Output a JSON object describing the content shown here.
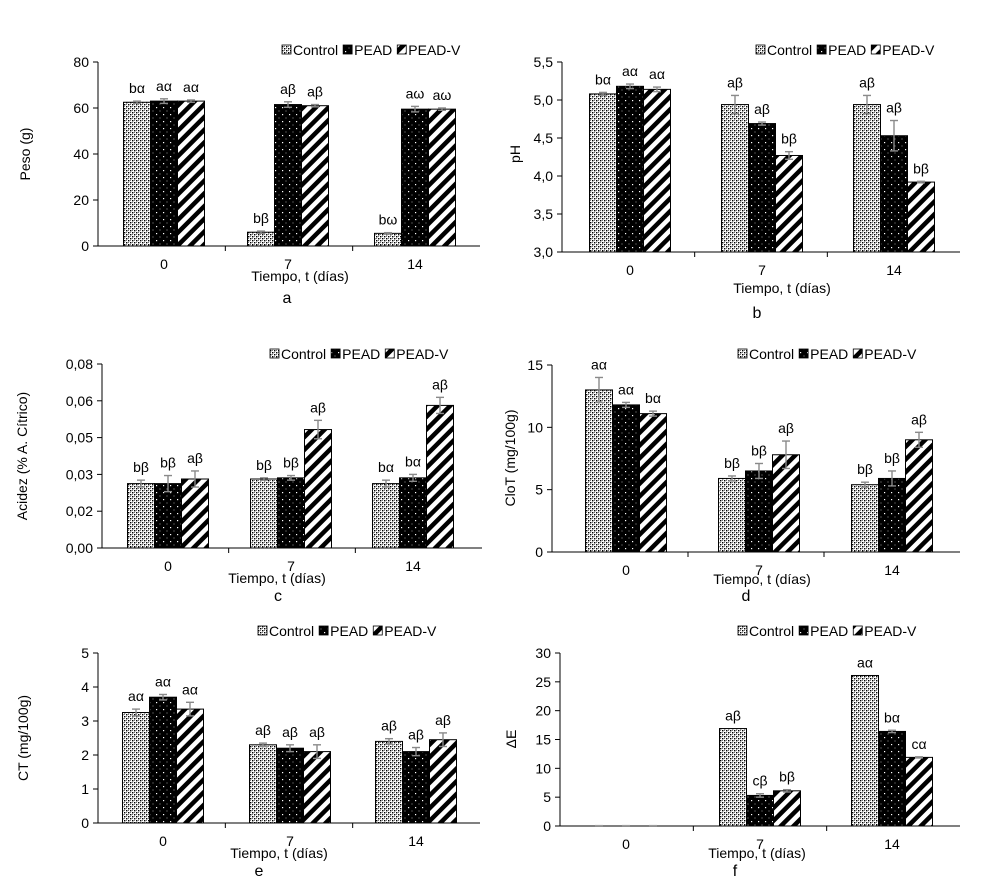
{
  "groups": [
    "Control",
    "PEAD",
    "PEAD-V"
  ],
  "styles": {
    "Control": "dots",
    "PEAD": "solid",
    "PEAD-V": "stripes"
  },
  "colors": {
    "bar_edge": "#000000",
    "error_bar": "#8a8a8a",
    "background": "#ffffff"
  },
  "chart_data": [
    {
      "id": "a",
      "type": "bar",
      "panel_label": "a",
      "ylabel": "Peso (g)",
      "xlabel": "Tiempo, t (días)",
      "ylim": [
        0,
        80
      ],
      "yticks": [
        "0",
        "20",
        "40",
        "60",
        "80"
      ],
      "categories": [
        "0",
        "7",
        "14"
      ],
      "series": [
        {
          "name": "Control",
          "values": [
            62.5,
            6,
            5.5
          ],
          "errors": [
            0.5,
            0.5,
            0.3
          ],
          "labels": [
            "bα",
            "bβ",
            "bω"
          ]
        },
        {
          "name": "PEAD",
          "values": [
            63,
            61.5,
            59.5
          ],
          "errors": [
            1,
            1.2,
            1.2
          ],
          "labels": [
            "aα",
            "aβ",
            "aω"
          ]
        },
        {
          "name": "PEAD-V",
          "values": [
            63,
            61,
            59.5
          ],
          "errors": [
            0.5,
            0.5,
            0.5
          ],
          "labels": [
            "aα",
            "aβ",
            "aω"
          ]
        }
      ]
    },
    {
      "id": "b",
      "type": "bar",
      "panel_label": "b",
      "ylabel": "pH",
      "xlabel": "Tiempo, t (días)",
      "ylim": [
        3.0,
        5.5
      ],
      "yticks": [
        "3,0",
        "3,5",
        "4,0",
        "4,5",
        "5,0",
        "5,5"
      ],
      "categories": [
        "0",
        "7",
        "14"
      ],
      "series": [
        {
          "name": "Control",
          "values": [
            5.08,
            4.94,
            4.94
          ],
          "errors": [
            0.02,
            0.12,
            0.12
          ],
          "labels": [
            "bα",
            "aβ",
            "aβ"
          ]
        },
        {
          "name": "PEAD",
          "values": [
            5.18,
            4.69,
            4.53
          ],
          "errors": [
            0.03,
            0.02,
            0.2
          ],
          "labels": [
            "aα",
            "aβ",
            "aβ"
          ]
        },
        {
          "name": "PEAD-V",
          "values": [
            5.14,
            4.27,
            3.92
          ],
          "errors": [
            0.03,
            0.05,
            0.01
          ],
          "labels": [
            "aα",
            "bβ",
            "bβ"
          ]
        }
      ]
    },
    {
      "id": "c",
      "type": "bar",
      "panel_label": "c",
      "ylabel": "Acidez (% A. Cítrico)",
      "xlabel": "Tiempo, t (días)",
      "ylim": [
        0,
        0.08
      ],
      "yticks": [
        "0,00",
        "0,02",
        "0,03",
        "0,05",
        "0,06",
        "0,08"
      ],
      "categories": [
        "0",
        "7",
        "14"
      ],
      "series": [
        {
          "name": "Control",
          "values": [
            0.028,
            0.03,
            0.028
          ],
          "errors": [
            0.0015,
            0.0005,
            0.0015
          ],
          "labels": [
            "bβ",
            "bβ",
            "bα"
          ]
        },
        {
          "name": "PEAD",
          "values": [
            0.028,
            0.0305,
            0.0305
          ],
          "errors": [
            0.0035,
            0.001,
            0.0015
          ],
          "labels": [
            "bβ",
            "bβ",
            "bα"
          ]
        },
        {
          "name": "PEAD-V",
          "values": [
            0.03,
            0.0515,
            0.062
          ],
          "errors": [
            0.0035,
            0.004,
            0.0035
          ],
          "labels": [
            "aβ",
            "aβ",
            "aβ"
          ]
        }
      ]
    },
    {
      "id": "d",
      "type": "bar",
      "panel_label": "d",
      "ylabel": "CloT (mg/100g)",
      "xlabel": "Tiempo, t (días)",
      "ylim": [
        0,
        15
      ],
      "yticks": [
        "0",
        "5",
        "10",
        "15"
      ],
      "categories": [
        "0",
        "7",
        "14"
      ],
      "series": [
        {
          "name": "Control",
          "values": [
            13,
            5.9,
            5.4
          ],
          "errors": [
            1,
            0.2,
            0.2
          ],
          "labels": [
            "aα",
            "bβ",
            "bβ"
          ]
        },
        {
          "name": "PEAD",
          "values": [
            11.8,
            6.5,
            5.9
          ],
          "errors": [
            0.2,
            0.6,
            0.6
          ],
          "labels": [
            "aα",
            "bβ",
            "bβ"
          ]
        },
        {
          "name": "PEAD-V",
          "values": [
            11.1,
            7.8,
            9.0
          ],
          "errors": [
            0.2,
            1.1,
            0.6
          ],
          "labels": [
            "bα",
            "aβ",
            "aβ"
          ]
        }
      ]
    },
    {
      "id": "e",
      "type": "bar",
      "panel_label": "e",
      "ylabel": "CT (mg/100g)",
      "xlabel": "Tiempo, t (días)",
      "ylim": [
        0,
        5
      ],
      "yticks": [
        "0",
        "1",
        "2",
        "3",
        "4",
        "5"
      ],
      "categories": [
        "0",
        "7",
        "14"
      ],
      "series": [
        {
          "name": "Control",
          "values": [
            3.25,
            2.3,
            2.4
          ],
          "errors": [
            0.1,
            0.05,
            0.08
          ],
          "labels": [
            "aα",
            "aβ",
            "aβ"
          ]
        },
        {
          "name": "PEAD",
          "values": [
            3.7,
            2.2,
            2.1
          ],
          "errors": [
            0.08,
            0.1,
            0.12
          ],
          "labels": [
            "aα",
            "aβ",
            "aβ"
          ]
        },
        {
          "name": "PEAD-V",
          "values": [
            3.35,
            2.1,
            2.45
          ],
          "errors": [
            0.2,
            0.2,
            0.2
          ],
          "labels": [
            "aα",
            "aβ",
            "aβ"
          ]
        }
      ]
    },
    {
      "id": "f",
      "type": "bar",
      "panel_label": "f",
      "ylabel": "ΔE",
      "xlabel": "Tiempo, t (días)",
      "ylim": [
        0,
        30
      ],
      "yticks": [
        "0",
        "5",
        "10",
        "15",
        "20",
        "25",
        "30"
      ],
      "categories": [
        "0",
        "7",
        "14"
      ],
      "series": [
        {
          "name": "Control",
          "values": [
            0,
            16.9,
            26.1
          ],
          "errors": [
            0,
            0,
            0
          ],
          "labels": [
            "",
            "aβ",
            "aα"
          ]
        },
        {
          "name": "PEAD",
          "values": [
            0,
            5.3,
            16.4
          ],
          "errors": [
            0,
            0.3,
            0.2
          ],
          "labels": [
            "",
            "cβ",
            "bα"
          ]
        },
        {
          "name": "PEAD-V",
          "values": [
            0,
            6.1,
            11.9
          ],
          "errors": [
            0,
            0.2,
            0.1
          ],
          "labels": [
            "",
            "bβ",
            "cα"
          ]
        }
      ]
    }
  ]
}
